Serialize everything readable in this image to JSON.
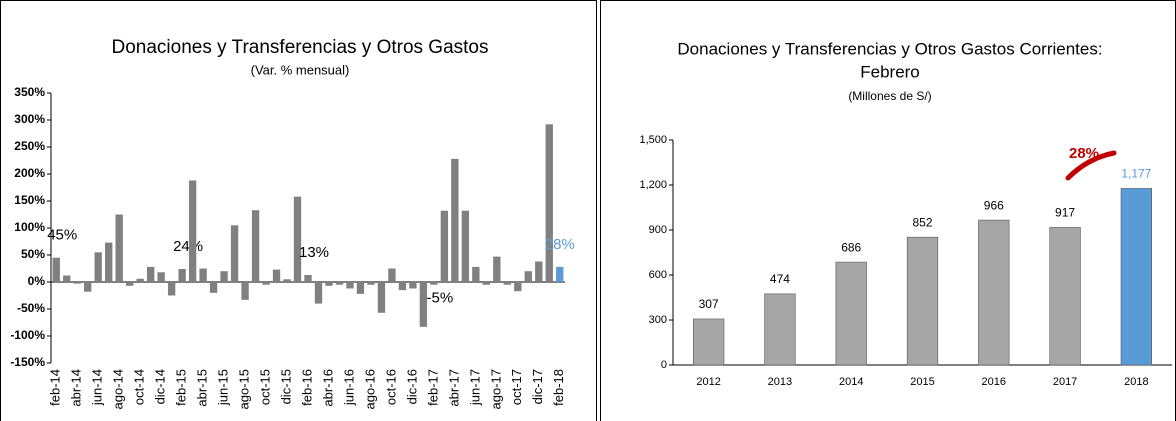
{
  "chart_data": [
    {
      "type": "bar",
      "title": "Donaciones y Transferencias y Otros Gastos",
      "subtitle": "(Var. % mensual)",
      "categories": [
        "feb-14",
        null,
        "abr-14",
        null,
        "jun-14",
        null,
        "ago-14",
        null,
        "oct-14",
        null,
        "dic-14",
        null,
        "feb-15",
        null,
        "abr-15",
        null,
        "jun-15",
        null,
        "ago-15",
        null,
        "oct-15",
        null,
        "dic-15",
        null,
        "feb-16",
        null,
        "abr-16",
        null,
        "jun-16",
        null,
        "ago-16",
        null,
        "oct-16",
        null,
        "dic-16",
        null,
        "feb-17",
        null,
        "abr-17",
        null,
        "jun-17",
        null,
        "ago-17",
        null,
        "oct-17",
        null,
        "dic-17",
        null,
        "feb-18"
      ],
      "values": [
        45,
        12,
        -3,
        -18,
        55,
        73,
        125,
        -7,
        6,
        28,
        18,
        -25,
        24,
        188,
        25,
        -20,
        20,
        105,
        -33,
        133,
        -5,
        23,
        5,
        158,
        13,
        -40,
        -7,
        -5,
        -12,
        -22,
        -5,
        -57,
        25,
        -15,
        -12,
        -83,
        -5,
        132,
        228,
        132,
        28,
        -5,
        47,
        -5,
        -17,
        20,
        38,
        292,
        28
      ],
      "value_labels": [
        "45%",
        null,
        null,
        null,
        null,
        null,
        null,
        null,
        null,
        null,
        null,
        null,
        "24%",
        null,
        null,
        null,
        null,
        null,
        null,
        null,
        null,
        null,
        null,
        null,
        "13%",
        null,
        null,
        null,
        null,
        null,
        null,
        null,
        null,
        null,
        null,
        null,
        "-5%",
        null,
        null,
        null,
        null,
        null,
        null,
        null,
        null,
        null,
        null,
        null,
        "28%"
      ],
      "colors": [
        "#808080",
        "#808080",
        "#808080",
        "#808080",
        "#808080",
        "#808080",
        "#808080",
        "#808080",
        "#808080",
        "#808080",
        "#808080",
        "#808080",
        "#808080",
        "#808080",
        "#808080",
        "#808080",
        "#808080",
        "#808080",
        "#808080",
        "#808080",
        "#808080",
        "#808080",
        "#808080",
        "#808080",
        "#808080",
        "#808080",
        "#808080",
        "#808080",
        "#808080",
        "#808080",
        "#808080",
        "#808080",
        "#808080",
        "#808080",
        "#808080",
        "#808080",
        "#808080",
        "#808080",
        "#808080",
        "#808080",
        "#808080",
        "#808080",
        "#808080",
        "#808080",
        "#808080",
        "#808080",
        "#808080",
        "#808080",
        "#5b9bd5"
      ],
      "ylim": [
        -150,
        350
      ],
      "yticks": [
        {
          "value": 350,
          "label": "350%"
        },
        {
          "value": 300,
          "label": "300%"
        },
        {
          "value": 250,
          "label": "250%"
        },
        {
          "value": 200,
          "label": "200%"
        },
        {
          "value": 150,
          "label": "150%"
        },
        {
          "value": 100,
          "label": "100%"
        },
        {
          "value": 50,
          "label": "50%"
        },
        {
          "value": 0,
          "label": "0%"
        },
        {
          "value": -50,
          "label": "-50%"
        },
        {
          "value": -100,
          "label": "-100%"
        },
        {
          "value": -150,
          "label": "-150%"
        }
      ],
      "grid": false
    },
    {
      "type": "bar",
      "title": "Donaciones y Transferencias y Otros Gastos  Corrientes:",
      "title_line2": "Febrero",
      "subtitle": "(Millones de S/)",
      "annotation": "28%",
      "categories": [
        "2012",
        "2013",
        "2014",
        "2015",
        "2016",
        "2017",
        "2018"
      ],
      "values": [
        307,
        474,
        686,
        852,
        966,
        917,
        1177
      ],
      "value_labels": [
        "307",
        "474",
        "686",
        "852",
        "966",
        "917",
        "1,177"
      ],
      "colors": [
        "#a6a6a6",
        "#a6a6a6",
        "#a6a6a6",
        "#a6a6a6",
        "#a6a6a6",
        "#a6a6a6",
        "#5b9bd5"
      ],
      "ylim": [
        0,
        1500
      ],
      "yticks": [
        0,
        300,
        600,
        900,
        {
          "value": 1200,
          "label": "1,200"
        },
        {
          "value": 1500,
          "label": "1,500"
        }
      ],
      "grid": false
    }
  ]
}
